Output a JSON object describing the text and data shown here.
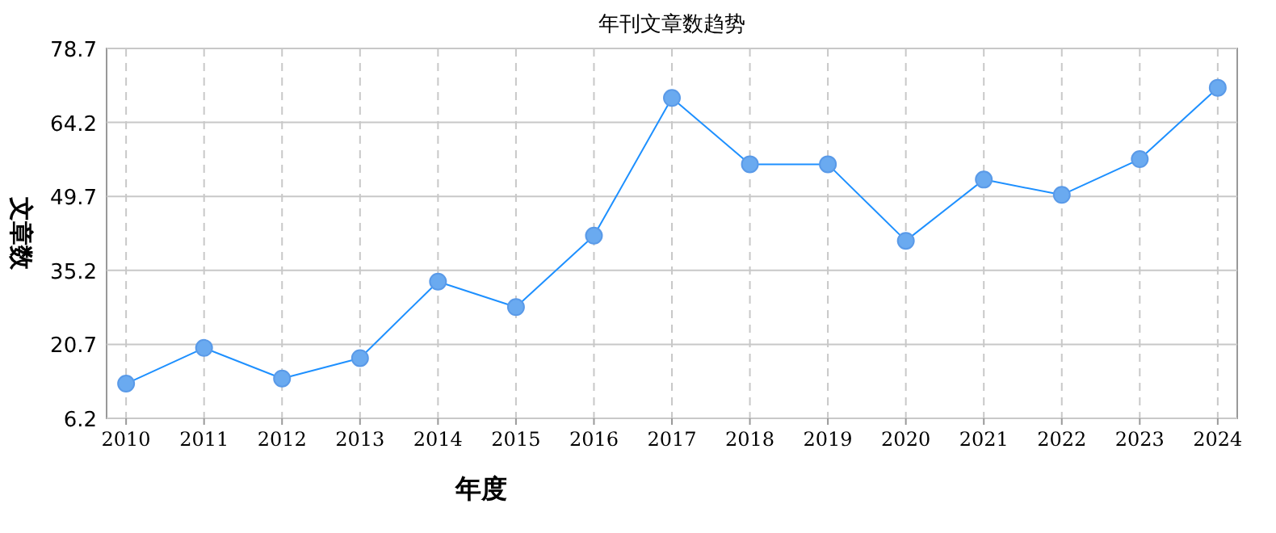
{
  "chart_data": {
    "type": "line",
    "title": "年刊文章数趋势",
    "xlabel": "年度",
    "ylabel": "文章数",
    "categories": [
      "2010",
      "2011",
      "2012",
      "2013",
      "2014",
      "2015",
      "2016",
      "2017",
      "2018",
      "2019",
      "2020",
      "2021",
      "2022",
      "2023",
      "2024"
    ],
    "series": [
      {
        "color": "#1e90ff",
        "values": [
          13,
          20,
          14,
          18,
          33,
          28,
          42,
          69,
          56,
          56,
          41,
          53,
          50,
          57,
          71
        ]
      }
    ],
    "ylim": [
      6.2,
      78.7
    ],
    "yticks": [
      6.2,
      20.7,
      35.2,
      49.7,
      64.2,
      78.7
    ],
    "grid": true,
    "marker": "circle",
    "line_style": "solid"
  }
}
